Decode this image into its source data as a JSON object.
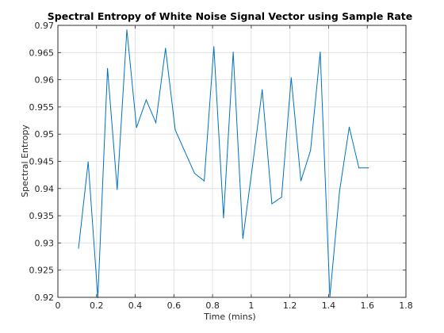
{
  "chart_data": {
    "type": "line",
    "title": "Spectral Entropy of White Noise Signal Vector using Sample Rate",
    "xlabel": "Time (mins)",
    "ylabel": "Spectral Entropy",
    "xlim": [
      0,
      1.8
    ],
    "ylim": [
      0.92,
      0.97
    ],
    "x_ticks": [
      0,
      0.2,
      0.4,
      0.6,
      0.8,
      1,
      1.2,
      1.4,
      1.6,
      1.8
    ],
    "x_tick_labels": [
      "0",
      "0.2",
      "0.4",
      "0.6",
      "0.8",
      "1",
      "1.2",
      "1.4",
      "1.6",
      "1.8"
    ],
    "y_ticks": [
      0.92,
      0.925,
      0.93,
      0.935,
      0.94,
      0.945,
      0.95,
      0.955,
      0.96,
      0.965,
      0.97
    ],
    "y_tick_labels": [
      "0.92",
      "0.925",
      "0.93",
      "0.935",
      "0.94",
      "0.945",
      "0.95",
      "0.955",
      "0.96",
      "0.965",
      "0.97"
    ],
    "grid": true,
    "series": [
      {
        "color": "#0072bd",
        "x": [
          0.1067,
          0.1567,
          0.2067,
          0.2567,
          0.3067,
          0.3567,
          0.4067,
          0.4567,
          0.5067,
          0.5567,
          0.6067,
          0.6567,
          0.7067,
          0.7567,
          0.8067,
          0.8567,
          0.9067,
          0.9567,
          1.0067,
          1.0567,
          1.1067,
          1.1567,
          1.2067,
          1.2567,
          1.3067,
          1.3567,
          1.4067,
          1.4567,
          1.5067,
          1.5567,
          1.6067
        ],
        "values": [
          0.929,
          0.9449,
          0.9199,
          0.9621,
          0.9398,
          0.9692,
          0.9512,
          0.9563,
          0.9521,
          0.9658,
          0.9508,
          0.9468,
          0.9428,
          0.9414,
          0.9661,
          0.9346,
          0.9651,
          0.9308,
          0.9442,
          0.9582,
          0.9372,
          0.9384,
          0.9604,
          0.9414,
          0.947,
          0.9651,
          0.9201,
          0.9395,
          0.9513,
          0.9438,
          0.9438
        ]
      }
    ]
  }
}
